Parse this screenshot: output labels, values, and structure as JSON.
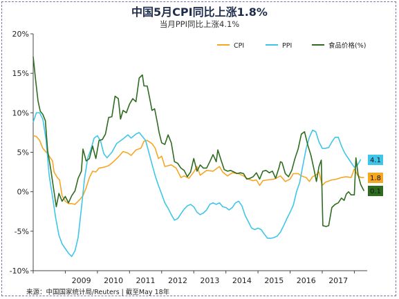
{
  "chart_data": {
    "type": "line",
    "title": "中国5月CPI同比上涨1.8%",
    "subtitle": "当月PPI同比上涨4.1%",
    "source": "来源：中国国家统计局/Reuters | 截至May 18年",
    "y_ticks": [
      "20%",
      "15%",
      "10%",
      "5%",
      "0%",
      "-5%",
      "-10%"
    ],
    "ylim": [
      -10,
      20
    ],
    "x_ticks": [
      "2009",
      "2010",
      "2011",
      "2012",
      "2013",
      "2014",
      "2015",
      "2016",
      "2017"
    ],
    "xlim": [
      2008.0,
      2018.4
    ],
    "legend_position": "top-right",
    "series": [
      {
        "name": "CPI",
        "color": "#f5a623",
        "points": [
          [
            2008.0,
            7.1
          ],
          [
            2008.1,
            7.0
          ],
          [
            2008.2,
            6.5
          ],
          [
            2008.3,
            5.5
          ],
          [
            2008.45,
            4.8
          ],
          [
            2008.6,
            3.9
          ],
          [
            2008.65,
            2.5
          ],
          [
            2008.75,
            1.8
          ],
          [
            2008.82,
            1.5
          ],
          [
            2008.9,
            -0.5
          ],
          [
            2009.0,
            -1.2
          ],
          [
            2009.1,
            -1.5
          ],
          [
            2009.2,
            -1.5
          ],
          [
            2009.3,
            -1.6
          ],
          [
            2009.45,
            -1.0
          ],
          [
            2009.55,
            -0.5
          ],
          [
            2009.65,
            0.5
          ],
          [
            2009.75,
            1.8
          ],
          [
            2009.85,
            2.6
          ],
          [
            2009.95,
            2.5
          ],
          [
            2010.05,
            3.0
          ],
          [
            2010.2,
            3.1
          ],
          [
            2010.35,
            3.3
          ],
          [
            2010.5,
            3.8
          ],
          [
            2010.65,
            4.4
          ],
          [
            2010.8,
            5.1
          ],
          [
            2010.95,
            4.9
          ],
          [
            2011.05,
            4.6
          ],
          [
            2011.2,
            5.3
          ],
          [
            2011.35,
            5.5
          ],
          [
            2011.45,
            6.4
          ],
          [
            2011.55,
            6.5
          ],
          [
            2011.7,
            6.1
          ],
          [
            2011.8,
            5.5
          ],
          [
            2011.9,
            4.2
          ],
          [
            2012.0,
            4.5
          ],
          [
            2012.1,
            3.2
          ],
          [
            2012.3,
            3.4
          ],
          [
            2012.45,
            3.0
          ],
          [
            2012.6,
            1.8
          ],
          [
            2012.7,
            2.0
          ],
          [
            2012.85,
            1.7
          ],
          [
            2013.0,
            2.5
          ],
          [
            2013.1,
            3.2
          ],
          [
            2013.2,
            2.1
          ],
          [
            2013.4,
            2.7
          ],
          [
            2013.6,
            2.6
          ],
          [
            2013.8,
            3.2
          ],
          [
            2013.9,
            2.5
          ],
          [
            2014.05,
            2.0
          ],
          [
            2014.2,
            2.4
          ],
          [
            2014.4,
            2.3
          ],
          [
            2014.55,
            2.0
          ],
          [
            2014.7,
            1.6
          ],
          [
            2014.85,
            1.4
          ],
          [
            2014.95,
            1.5
          ],
          [
            2015.05,
            0.8
          ],
          [
            2015.15,
            1.4
          ],
          [
            2015.3,
            1.5
          ],
          [
            2015.5,
            1.6
          ],
          [
            2015.7,
            2.0
          ],
          [
            2015.85,
            1.3
          ],
          [
            2016.0,
            1.6
          ],
          [
            2016.1,
            2.3
          ],
          [
            2016.25,
            2.3
          ],
          [
            2016.35,
            2.0
          ],
          [
            2016.5,
            1.8
          ],
          [
            2016.6,
            1.3
          ],
          [
            2016.7,
            1.9
          ],
          [
            2016.8,
            2.1
          ],
          [
            2016.9,
            2.5
          ],
          [
            2017.0,
            0.8
          ],
          [
            2017.1,
            1.2
          ],
          [
            2017.3,
            1.5
          ],
          [
            2017.45,
            1.6
          ],
          [
            2017.6,
            1.8
          ],
          [
            2017.75,
            1.9
          ],
          [
            2017.9,
            1.8
          ],
          [
            2018.0,
            2.9
          ],
          [
            2018.1,
            2.1
          ],
          [
            2018.2,
            1.8
          ],
          [
            2018.3,
            1.8
          ]
        ]
      },
      {
        "name": "PPI",
        "color": "#3ec6e8",
        "points": [
          [
            2008.0,
            8.8
          ],
          [
            2008.1,
            10.0
          ],
          [
            2008.2,
            10.0
          ],
          [
            2008.3,
            9.2
          ],
          [
            2008.4,
            6.6
          ],
          [
            2008.5,
            2.0
          ],
          [
            2008.6,
            -0.6
          ],
          [
            2008.7,
            -3.3
          ],
          [
            2008.8,
            -5.5
          ],
          [
            2008.9,
            -6.6
          ],
          [
            2009.0,
            -7.2
          ],
          [
            2009.1,
            -7.8
          ],
          [
            2009.2,
            -8.2
          ],
          [
            2009.3,
            -7.5
          ],
          [
            2009.4,
            -5.8
          ],
          [
            2009.5,
            -2.1
          ],
          [
            2009.6,
            1.7
          ],
          [
            2009.7,
            4.3
          ],
          [
            2009.8,
            5.4
          ],
          [
            2009.9,
            6.8
          ],
          [
            2010.0,
            7.1
          ],
          [
            2010.1,
            6.4
          ],
          [
            2010.2,
            4.8
          ],
          [
            2010.3,
            4.3
          ],
          [
            2010.45,
            5.0
          ],
          [
            2010.6,
            6.1
          ],
          [
            2010.8,
            6.7
          ],
          [
            2010.95,
            7.2
          ],
          [
            2011.05,
            6.8
          ],
          [
            2011.2,
            7.3
          ],
          [
            2011.3,
            7.5
          ],
          [
            2011.4,
            7.0
          ],
          [
            2011.5,
            6.5
          ],
          [
            2011.6,
            5.0
          ],
          [
            2011.7,
            3.5
          ],
          [
            2011.8,
            2.0
          ],
          [
            2011.9,
            0.8
          ],
          [
            2012.0,
            -0.3
          ],
          [
            2012.1,
            -1.4
          ],
          [
            2012.2,
            -2.1
          ],
          [
            2012.3,
            -2.9
          ],
          [
            2012.4,
            -3.6
          ],
          [
            2012.5,
            -3.4
          ],
          [
            2012.6,
            -2.8
          ],
          [
            2012.7,
            -2.2
          ],
          [
            2012.8,
            -1.8
          ],
          [
            2012.9,
            -1.6
          ],
          [
            2013.0,
            -1.9
          ],
          [
            2013.1,
            -2.6
          ],
          [
            2013.2,
            -2.9
          ],
          [
            2013.3,
            -2.7
          ],
          [
            2013.4,
            -2.3
          ],
          [
            2013.5,
            -1.6
          ],
          [
            2013.6,
            -1.4
          ],
          [
            2013.7,
            -1.6
          ],
          [
            2013.8,
            -1.4
          ],
          [
            2013.9,
            -1.9
          ],
          [
            2014.0,
            -2.0
          ],
          [
            2014.1,
            -2.3
          ],
          [
            2014.2,
            -2.0
          ],
          [
            2014.3,
            -1.4
          ],
          [
            2014.4,
            -1.2
          ],
          [
            2014.5,
            -1.8
          ],
          [
            2014.6,
            -3.0
          ],
          [
            2014.7,
            -3.8
          ],
          [
            2014.8,
            -4.6
          ],
          [
            2014.9,
            -4.8
          ],
          [
            2015.0,
            -4.6
          ],
          [
            2015.1,
            -4.8
          ],
          [
            2015.2,
            -5.4
          ],
          [
            2015.3,
            -5.9
          ],
          [
            2015.4,
            -5.9
          ],
          [
            2015.5,
            -5.8
          ],
          [
            2015.6,
            -5.6
          ],
          [
            2015.7,
            -5.1
          ],
          [
            2015.8,
            -4.3
          ],
          [
            2015.9,
            -3.4
          ],
          [
            2016.0,
            -2.6
          ],
          [
            2016.1,
            -1.7
          ],
          [
            2016.2,
            0.0
          ],
          [
            2016.3,
            1.2
          ],
          [
            2016.4,
            3.4
          ],
          [
            2016.5,
            5.5
          ],
          [
            2016.6,
            6.9
          ],
          [
            2016.7,
            7.8
          ],
          [
            2016.8,
            7.6
          ],
          [
            2016.9,
            6.3
          ],
          [
            2017.0,
            5.5
          ],
          [
            2017.1,
            5.5
          ],
          [
            2017.2,
            5.6
          ],
          [
            2017.3,
            6.3
          ],
          [
            2017.4,
            6.9
          ],
          [
            2017.5,
            6.9
          ],
          [
            2017.6,
            5.8
          ],
          [
            2017.7,
            4.9
          ],
          [
            2017.8,
            4.3
          ],
          [
            2017.9,
            3.7
          ],
          [
            2018.0,
            3.1
          ],
          [
            2018.1,
            3.4
          ],
          [
            2018.2,
            4.1
          ]
        ]
      },
      {
        "name": "食品价格(%)",
        "color": "#2e6b1f",
        "points": [
          [
            2008.0,
            17.1
          ],
          [
            2008.08,
            14.0
          ],
          [
            2008.15,
            11.5
          ],
          [
            2008.22,
            10.2
          ],
          [
            2008.3,
            9.8
          ],
          [
            2008.38,
            9.0
          ],
          [
            2008.45,
            5.2
          ],
          [
            2008.55,
            2.8
          ],
          [
            2008.63,
            0.5
          ],
          [
            2008.72,
            -1.9
          ],
          [
            2008.8,
            -0.2
          ],
          [
            2008.9,
            -1.2
          ],
          [
            2009.0,
            -0.6
          ],
          [
            2009.1,
            -1.4
          ],
          [
            2009.2,
            -0.5
          ],
          [
            2009.3,
            0.1
          ],
          [
            2009.4,
            1.7
          ],
          [
            2009.5,
            2.6
          ],
          [
            2009.55,
            5.4
          ],
          [
            2009.65,
            3.9
          ],
          [
            2009.75,
            4.2
          ],
          [
            2009.85,
            5.8
          ],
          [
            2009.95,
            4.2
          ],
          [
            2010.05,
            6.5
          ],
          [
            2010.15,
            6.6
          ],
          [
            2010.25,
            7.3
          ],
          [
            2010.35,
            9.4
          ],
          [
            2010.45,
            9.5
          ],
          [
            2010.55,
            12.1
          ],
          [
            2010.65,
            11.8
          ],
          [
            2010.72,
            9.2
          ],
          [
            2010.8,
            10.3
          ],
          [
            2010.9,
            10.0
          ],
          [
            2011.0,
            11.1
          ],
          [
            2011.1,
            11.8
          ],
          [
            2011.2,
            11.4
          ],
          [
            2011.3,
            14.4
          ],
          [
            2011.4,
            14.8
          ],
          [
            2011.45,
            13.4
          ],
          [
            2011.55,
            13.4
          ],
          [
            2011.62,
            12.0
          ],
          [
            2011.7,
            10.3
          ],
          [
            2011.78,
            10.5
          ],
          [
            2011.85,
            9.1
          ],
          [
            2011.92,
            7.5
          ],
          [
            2012.0,
            6.2
          ],
          [
            2012.1,
            6.0
          ],
          [
            2012.2,
            7.2
          ],
          [
            2012.3,
            6.2
          ],
          [
            2012.4,
            3.8
          ],
          [
            2012.5,
            3.6
          ],
          [
            2012.6,
            3.0
          ],
          [
            2012.7,
            2.7
          ],
          [
            2012.8,
            1.9
          ],
          [
            2012.9,
            2.5
          ],
          [
            2013.0,
            4.2
          ],
          [
            2013.1,
            2.6
          ],
          [
            2013.2,
            3.4
          ],
          [
            2013.3,
            3.0
          ],
          [
            2013.4,
            3.0
          ],
          [
            2013.5,
            3.8
          ],
          [
            2013.6,
            4.7
          ],
          [
            2013.7,
            3.8
          ],
          [
            2013.75,
            5.3
          ],
          [
            2013.85,
            4.0
          ],
          [
            2013.95,
            2.8
          ],
          [
            2014.05,
            2.6
          ],
          [
            2014.15,
            2.7
          ],
          [
            2014.25,
            2.5
          ],
          [
            2014.35,
            2.3
          ],
          [
            2014.45,
            2.4
          ],
          [
            2014.55,
            2.3
          ],
          [
            2014.65,
            1.6
          ],
          [
            2014.75,
            1.7
          ],
          [
            2014.85,
            1.9
          ],
          [
            2014.95,
            2.4
          ],
          [
            2015.05,
            1.6
          ],
          [
            2015.15,
            2.6
          ],
          [
            2015.25,
            2.7
          ],
          [
            2015.35,
            2.4
          ],
          [
            2015.45,
            2.6
          ],
          [
            2015.55,
            1.7
          ],
          [
            2015.65,
            3.0
          ],
          [
            2015.7,
            3.8
          ],
          [
            2015.75,
            3.7
          ],
          [
            2015.85,
            2.3
          ],
          [
            2015.95,
            1.9
          ],
          [
            2016.05,
            2.7
          ],
          [
            2016.15,
            4.2
          ],
          [
            2016.25,
            5.4
          ],
          [
            2016.35,
            7.3
          ],
          [
            2016.45,
            7.6
          ],
          [
            2016.55,
            5.9
          ],
          [
            2016.65,
            4.6
          ],
          [
            2016.75,
            2.7
          ],
          [
            2016.82,
            1.3
          ],
          [
            2016.9,
            3.2
          ],
          [
            2016.97,
            4.0
          ],
          [
            2017.02,
            -4.3
          ],
          [
            2017.12,
            -4.4
          ],
          [
            2017.2,
            -4.3
          ],
          [
            2017.3,
            -2.0
          ],
          [
            2017.4,
            -1.6
          ],
          [
            2017.5,
            -1.4
          ],
          [
            2017.6,
            -0.8
          ],
          [
            2017.68,
            -1.1
          ],
          [
            2017.75,
            -0.3
          ],
          [
            2017.82,
            0.0
          ],
          [
            2017.9,
            -0.4
          ],
          [
            2018.0,
            -0.4
          ],
          [
            2018.05,
            4.3
          ],
          [
            2018.12,
            2.1
          ],
          [
            2018.2,
            0.9
          ],
          [
            2018.3,
            0.1
          ]
        ]
      }
    ],
    "end_labels": [
      {
        "series": "PPI",
        "text": "4.1",
        "value": 4.1,
        "color": "#3ec6e8"
      },
      {
        "series": "CPI",
        "text": "1.8",
        "value": 1.8,
        "color": "#f5a623"
      },
      {
        "series": "食品价格(%)",
        "text": "0.1",
        "value": 0.1,
        "color": "#2e6b1f"
      }
    ]
  }
}
